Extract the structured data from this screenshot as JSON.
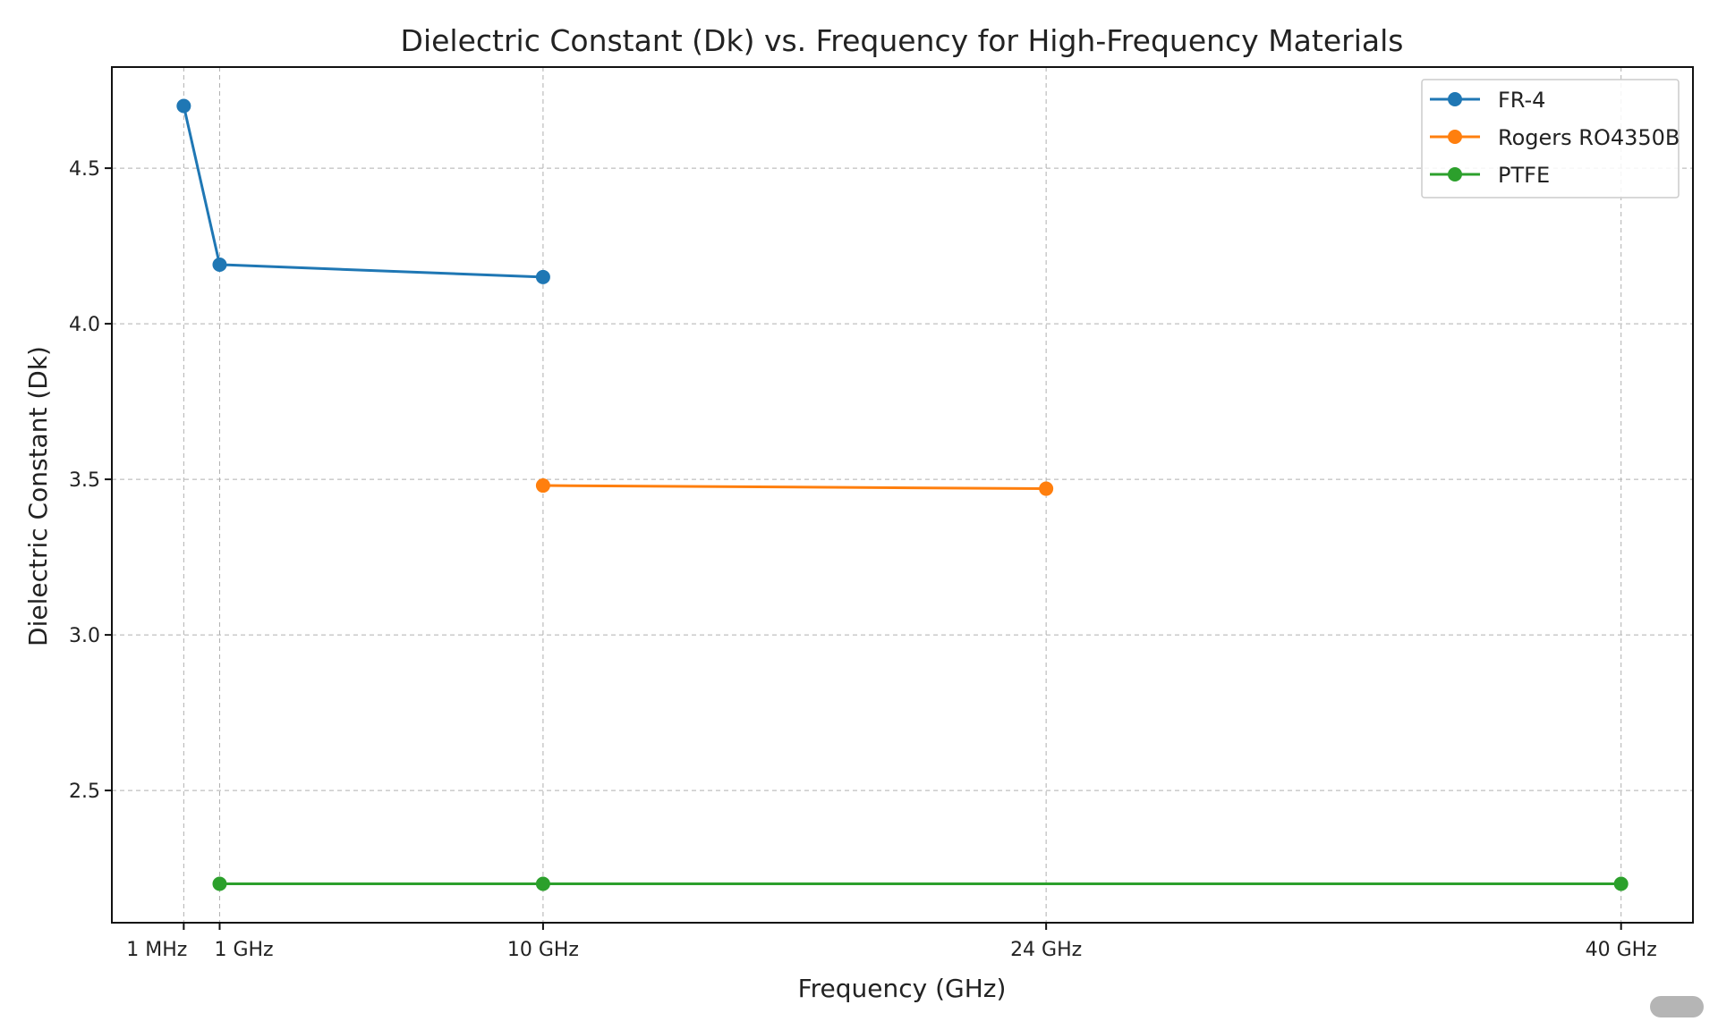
{
  "chart_data": {
    "type": "line",
    "title": "Dielectric Constant (Dk) vs. Frequency for High-Frequency Materials",
    "xlabel": "Frequency (GHz)",
    "ylabel": "Dielectric Constant (Dk)",
    "xlim": [
      -2,
      42
    ],
    "ylim": [
      2.075,
      4.825
    ],
    "grid": true,
    "legend_position": "top-right",
    "x_ticks": [
      {
        "value": 0.001,
        "label": "1 MHz"
      },
      {
        "value": 1,
        "label": "1 GHz"
      },
      {
        "value": 10,
        "label": "10 GHz"
      },
      {
        "value": 24,
        "label": "24 GHz"
      },
      {
        "value": 40,
        "label": "40 GHz"
      }
    ],
    "y_ticks": [
      {
        "value": 2.5,
        "label": "2.5"
      },
      {
        "value": 3.0,
        "label": "3.0"
      },
      {
        "value": 3.5,
        "label": "3.5"
      },
      {
        "value": 4.0,
        "label": "4.0"
      },
      {
        "value": 4.5,
        "label": "4.5"
      }
    ],
    "series": [
      {
        "name": "FR-4",
        "color": "#1f77b4",
        "x": [
          0.001,
          1,
          10
        ],
        "y": [
          4.7,
          4.19,
          4.15
        ]
      },
      {
        "name": "Rogers RO4350B",
        "color": "#ff7f0e",
        "x": [
          10,
          24
        ],
        "y": [
          3.48,
          3.47
        ]
      },
      {
        "name": "PTFE",
        "color": "#2ca02c",
        "x": [
          1,
          10,
          40
        ],
        "y": [
          2.2,
          2.2,
          2.2
        ]
      }
    ]
  }
}
